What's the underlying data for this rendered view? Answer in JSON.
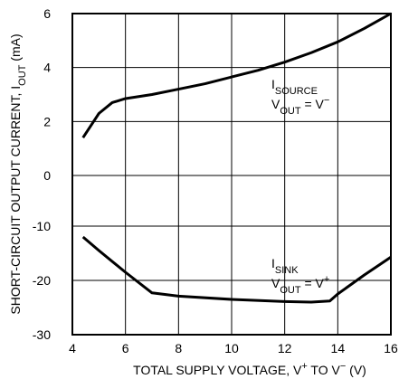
{
  "chart_data": [
    {
      "type": "line",
      "xlim": [
        4,
        16
      ],
      "xticks": [
        4,
        6,
        8,
        10,
        12,
        14,
        16
      ],
      "ylim": [
        0,
        6
      ],
      "yticks": [
        0,
        2,
        4,
        6
      ],
      "grid": true,
      "x": [
        4.4,
        5,
        5.5,
        6,
        7,
        8,
        9,
        10,
        11,
        12,
        13,
        14,
        15,
        16
      ],
      "series": [
        {
          "color": "#000000",
          "values": [
            1.4,
            2.3,
            2.7,
            2.85,
            3.0,
            3.2,
            3.4,
            3.65,
            3.9,
            4.2,
            4.55,
            4.95,
            5.45,
            6.0
          ]
        }
      ],
      "annotation": [
        [
          {
            "text": "I"
          },
          {
            "text": "SOURCE",
            "script": "sub"
          }
        ],
        [
          {
            "text": "V"
          },
          {
            "text": "OUT",
            "script": "sub"
          },
          {
            "text": " = V"
          },
          {
            "text": "−",
            "script": "sup"
          }
        ]
      ]
    },
    {
      "type": "line",
      "xlim": [
        4,
        16
      ],
      "xticks": [
        4,
        6,
        8,
        10,
        12,
        14,
        16
      ],
      "ylim": [
        -30,
        -10
      ],
      "yticks": [
        -10,
        -20,
        -30
      ],
      "grid": true,
      "x": [
        4.4,
        5,
        6,
        7,
        8,
        10,
        12,
        13,
        13.7,
        14,
        15,
        16
      ],
      "series": [
        {
          "color": "#000000",
          "values": [
            -12,
            -14.5,
            -18.5,
            -22.3,
            -22.9,
            -23.5,
            -23.9,
            -24,
            -23.8,
            -22.5,
            -19,
            -15.7
          ]
        }
      ],
      "annotation": [
        [
          {
            "text": "I"
          },
          {
            "text": "SINK",
            "script": "sub"
          }
        ],
        [
          {
            "text": "V"
          },
          {
            "text": "OUT",
            "script": "sub"
          },
          {
            "text": " = V"
          },
          {
            "text": "+",
            "script": "sup"
          }
        ]
      ],
      "x_label": [
        {
          "text": "TOTAL SUPPLY VOLTAGE, V"
        },
        {
          "text": "+",
          "script": "sup"
        },
        {
          "text": " TO V"
        },
        {
          "text": "−",
          "script": "sup"
        },
        {
          "text": " (V)"
        }
      ],
      "y_label": [
        {
          "text": "SHORT-CIRCUIT OUTPUT CURRENT, I"
        },
        {
          "text": "OUT",
          "script": "sub"
        },
        {
          "text": " (mA)"
        }
      ]
    }
  ]
}
